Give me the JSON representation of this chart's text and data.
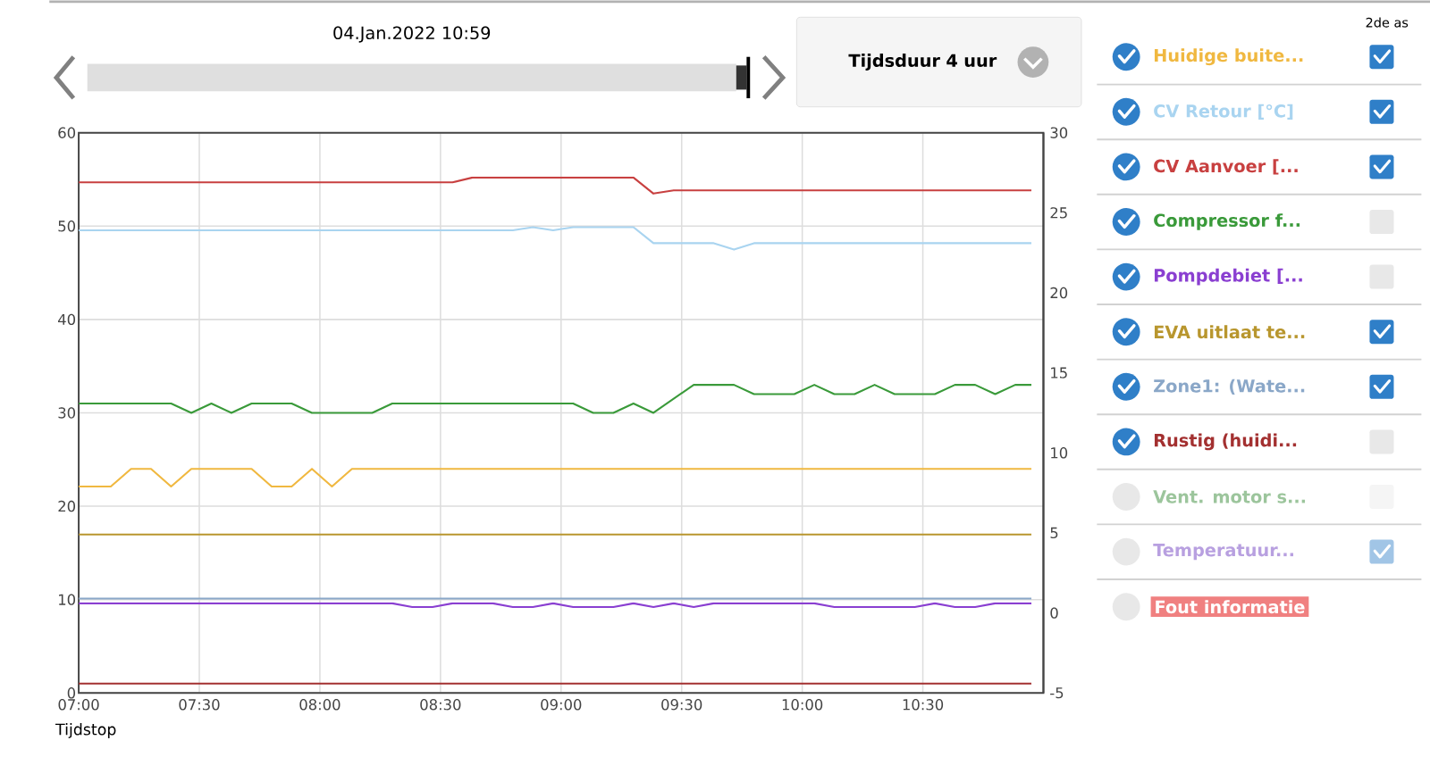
{
  "chart_data": {
    "type": "line",
    "xlabel": "Tijdstop",
    "xlim": [
      7,
      11
    ],
    "xticks": [
      {
        "value": 7,
        "label": "07:00"
      },
      {
        "value": 7.5,
        "label": "07:30"
      },
      {
        "value": 8,
        "label": "08:00"
      },
      {
        "value": 8.5,
        "label": "08:30"
      },
      {
        "value": 9,
        "label": "09:00"
      },
      {
        "value": 9.5,
        "label": "09:30"
      },
      {
        "value": 10,
        "label": "10:00"
      },
      {
        "value": 10.5,
        "label": "10:30"
      }
    ],
    "ylim": [
      0,
      60
    ],
    "yticks": [
      0,
      10,
      20,
      30,
      40,
      50,
      60
    ],
    "y2lim": [
      -5,
      30
    ],
    "y2ticks": [
      -5,
      0,
      5,
      10,
      15,
      20,
      25,
      30
    ],
    "grid": true,
    "legend": "right",
    "marker": "none",
    "line_style": "solid",
    "series": [
      {
        "name": "Huidige buite...",
        "color": "#f0b840",
        "axis": "y2",
        "x": [
          7,
          7.133,
          7.217,
          7.3,
          7.383,
          7.467,
          7.717,
          7.8,
          7.883,
          7.967,
          8.05,
          8.133,
          10.95
        ],
        "values": [
          7.9,
          7.9,
          9.0,
          9.0,
          7.9,
          9.0,
          9.0,
          7.9,
          7.9,
          9.0,
          7.9,
          9.0,
          9.0
        ]
      },
      {
        "name": "CV Retour [°C]",
        "color": "#a9d4f0",
        "axis": "y2",
        "x": [
          7,
          8.8,
          8.883,
          8.967,
          9.05,
          9.3,
          9.383,
          9.633,
          9.717,
          9.8,
          10.95
        ],
        "values": [
          23.9,
          23.9,
          24.1,
          23.9,
          24.1,
          24.1,
          23.1,
          23.1,
          22.7,
          23.1,
          23.1
        ]
      },
      {
        "name": "CV Aanvoer [...",
        "color": "#c84040",
        "axis": "y2",
        "x": [
          7,
          8.55,
          8.633,
          9.3,
          9.383,
          9.467,
          10.95
        ],
        "values": [
          26.9,
          26.9,
          27.2,
          27.2,
          26.2,
          26.4,
          26.4
        ]
      },
      {
        "name": "Compressor f...",
        "color": "#3a9a3a",
        "axis": "y",
        "x": [
          7,
          7.383,
          7.467,
          7.55,
          7.633,
          7.717,
          7.883,
          7.967,
          8.217,
          8.3,
          9.05,
          9.133,
          9.217,
          9.3,
          9.383,
          9.55,
          9.717,
          9.8,
          9.967,
          10.05,
          10.133,
          10.217,
          10.3,
          10.383,
          10.55,
          10.633,
          10.717,
          10.8,
          10.883,
          10.95
        ],
        "values": [
          31,
          31,
          30,
          31,
          30,
          31,
          31,
          30,
          30,
          31,
          31,
          30,
          30,
          31,
          30,
          33,
          33,
          32,
          32,
          33,
          32,
          32,
          33,
          32,
          32,
          33,
          33,
          32,
          33,
          33
        ]
      },
      {
        "name": "Pompdebiet [...",
        "color": "#8a3fd1",
        "axis": "y",
        "x": [
          7,
          8.3,
          8.383,
          8.467,
          8.55,
          8.717,
          8.8,
          8.883,
          8.967,
          9.05,
          9.217,
          9.3,
          9.383,
          9.467,
          9.55,
          9.633,
          9.717,
          10.05,
          10.133,
          10.467,
          10.55,
          10.633,
          10.717,
          10.8,
          10.95
        ],
        "values": [
          9.6,
          9.6,
          9.2,
          9.2,
          9.6,
          9.6,
          9.2,
          9.2,
          9.6,
          9.2,
          9.2,
          9.6,
          9.2,
          9.6,
          9.2,
          9.6,
          9.6,
          9.6,
          9.2,
          9.2,
          9.6,
          9.2,
          9.2,
          9.6,
          9.6
        ]
      },
      {
        "name": "EVA uitlaat te...",
        "color": "#b8962e",
        "axis": "y2",
        "x": [
          7,
          10.95
        ],
        "values": [
          4.9,
          4.9
        ]
      },
      {
        "name": "Zone1: (Wate...",
        "color": "#8aa7c8",
        "axis": "y2",
        "x": [
          7,
          10.95
        ],
        "values": [
          0.9,
          0.9
        ]
      },
      {
        "name": "Rustig (huidi...",
        "color": "#a33030",
        "axis": "y",
        "x": [
          7,
          10.95
        ],
        "values": [
          1,
          1
        ]
      }
    ],
    "annotations": [
      "04.Jan.2022 10:59",
      "Tijdsduur 4 uur",
      "2de as",
      "Vent. motor s...",
      "Temperatuur...",
      "Fout informatie"
    ]
  }
}
